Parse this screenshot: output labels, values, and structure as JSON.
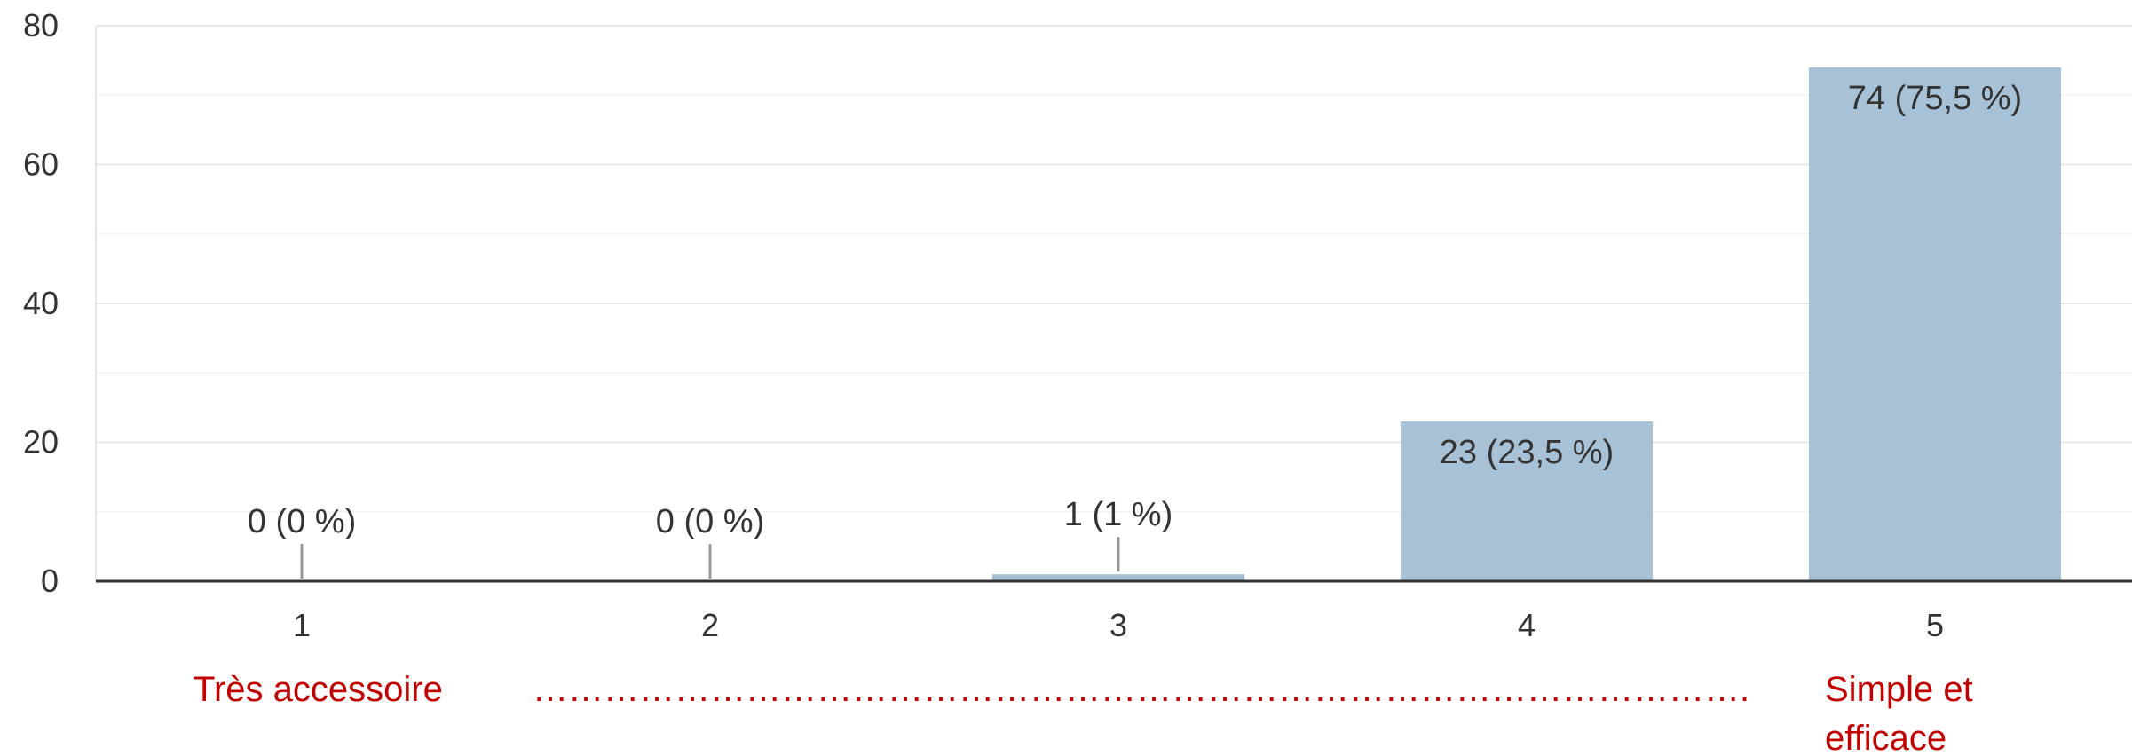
{
  "chart_data": {
    "type": "bar",
    "categories": [
      "1",
      "2",
      "3",
      "4",
      "5"
    ],
    "values": [
      0,
      0,
      1,
      23,
      74
    ],
    "data_labels": [
      "0 (0 %)",
      "0 (0 %)",
      "1 (1 %)",
      "23 (23,5 %)",
      "74 (75,5 %)"
    ],
    "yticks": [
      "0",
      "20",
      "40",
      "60",
      "80"
    ],
    "ylim": [
      0,
      80
    ],
    "grid": true,
    "bar_color": "#a7c1d6",
    "annotations": {
      "low_label": "Très accessoire",
      "dotted_line": "………………………………………………………………………………………….",
      "high_label_line1": "Simple et",
      "high_label_line2": "efficace",
      "annotation_color": "#c00000"
    }
  }
}
